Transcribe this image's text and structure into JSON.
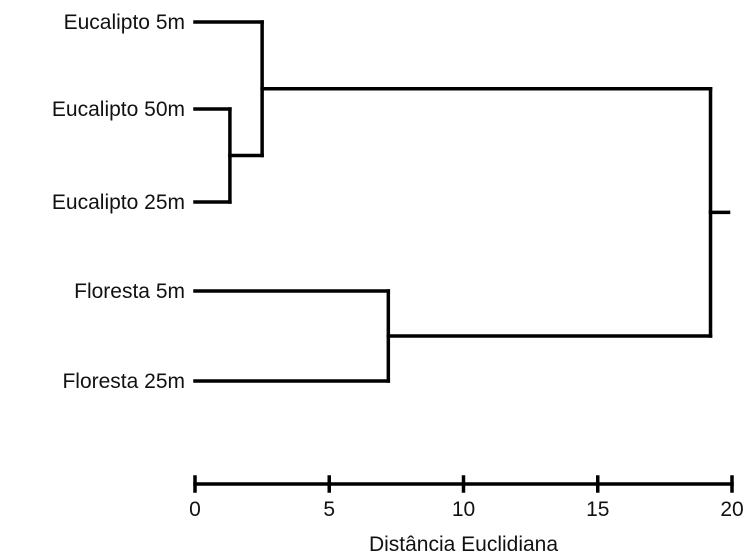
{
  "chart_data": {
    "type": "dendrogram",
    "title": "",
    "xlabel": "Distância Euclidiana",
    "xlim": [
      0,
      20
    ],
    "x_ticks": [
      0,
      5,
      10,
      15,
      20
    ],
    "x_tick_labels": [
      "0",
      "5",
      "10",
      "15",
      "20"
    ],
    "grid": false,
    "leaves": [
      {
        "id": "e5",
        "label": "Eucalipto 5m"
      },
      {
        "id": "e50",
        "label": "Eucalipto 50m"
      },
      {
        "id": "e25",
        "label": "Eucalipto 25m"
      },
      {
        "id": "f5",
        "label": "Floresta 5m"
      },
      {
        "id": "f25",
        "label": "Floresta 25m"
      }
    ],
    "merges": [
      {
        "id": "m1",
        "children": [
          "e50",
          "e25"
        ],
        "distance": 1.3
      },
      {
        "id": "m2",
        "children": [
          "e5",
          "m1"
        ],
        "distance": 2.5
      },
      {
        "id": "m3",
        "children": [
          "f5",
          "f25"
        ],
        "distance": 7.2
      },
      {
        "id": "m4",
        "children": [
          "m2",
          "m3"
        ],
        "distance": 19.2
      }
    ]
  }
}
